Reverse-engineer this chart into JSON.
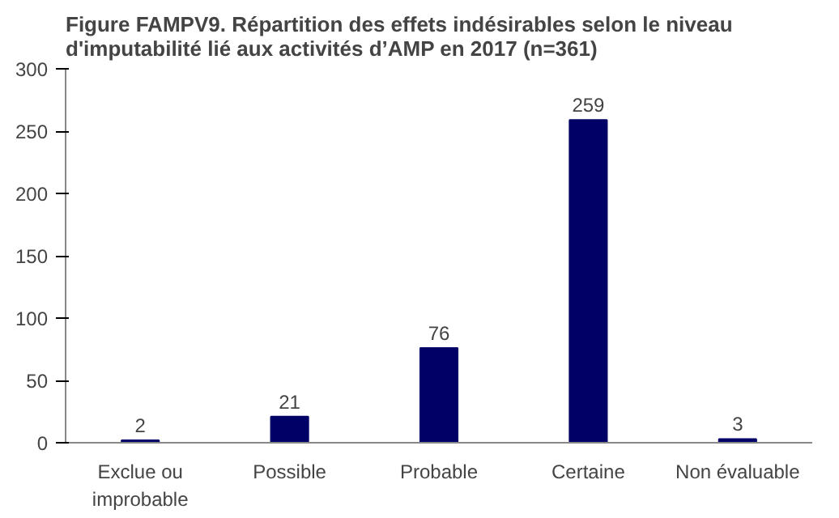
{
  "chart_data": {
    "type": "bar",
    "title": "Figure FAMPV9. Répartition des effets indésirables selon le niveau d'imputabilité lié aux activités d’AMP en 2017 (n=361)",
    "categories": [
      "Exclue ou improbable",
      "Possible",
      "Probable",
      "Certaine",
      "Non évaluable"
    ],
    "values": [
      2,
      21,
      76,
      259,
      3
    ],
    "color": "#000066",
    "ylim": [
      0,
      300
    ],
    "yticks": [
      0,
      50,
      100,
      150,
      200,
      250,
      300
    ],
    "data_labels": true,
    "grid": false
  }
}
